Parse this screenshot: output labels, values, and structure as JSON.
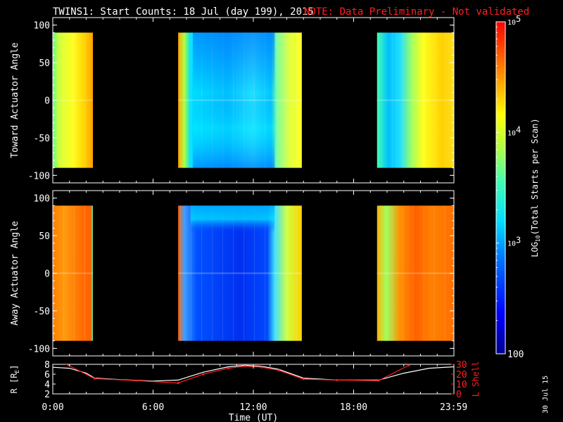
{
  "title": {
    "main": "TWINS1: Start Counts: 18 Jul (day 199), 2015",
    "note": "NOTE: Data Preliminary - Not validated"
  },
  "side_date": "30 Jul 15",
  "colors": {
    "background": "#000000",
    "axis": "#ffffff",
    "note": "#ff2020",
    "r_line": "#ffffff",
    "lshell_line": "#ff2020"
  },
  "chart_data": [
    {
      "type": "heatmap",
      "name": "toward",
      "ylabel": "Toward Actuator Angle",
      "ylim": [
        -110,
        110
      ],
      "yticks": [
        100,
        50,
        0,
        -50,
        -100
      ],
      "data_ylim": [
        -90,
        90
      ],
      "xlim": [
        0,
        24
      ],
      "time_blocks": [
        {
          "start": 0.0,
          "end": 2.4,
          "profile": "yellow",
          "log_value": 4.1
        },
        {
          "start": 7.5,
          "end": 14.9,
          "profile": "cyan-blue",
          "log_value": 3.2
        },
        {
          "start": 19.4,
          "end": 24.0,
          "profile": "yellow-cyan",
          "log_value": 3.8
        }
      ]
    },
    {
      "type": "heatmap",
      "name": "away",
      "ylabel": "Away Actuator Angle",
      "ylim": [
        -110,
        110
      ],
      "yticks": [
        100,
        50,
        0,
        -50,
        -100
      ],
      "data_ylim": [
        -90,
        90
      ],
      "xlim": [
        0,
        24
      ],
      "time_blocks": [
        {
          "start": 0.0,
          "end": 2.4,
          "profile": "orange",
          "log_value": 4.4
        },
        {
          "start": 7.5,
          "end": 14.9,
          "profile": "blue",
          "log_value": 2.7
        },
        {
          "start": 19.4,
          "end": 24.0,
          "profile": "orange-mixed",
          "log_value": 4.2
        }
      ]
    },
    {
      "type": "line",
      "name": "ephemeris",
      "xlabel": "Time (UT)",
      "xlim": [
        0,
        24
      ],
      "xticks": [
        "0:00",
        "6:00",
        "12:00",
        "18:00",
        "23:59"
      ],
      "left_axis": {
        "label": "R [R",
        "label_sub": "E",
        "label_end": "]",
        "ylim": [
          2,
          8
        ],
        "yticks": [
          2,
          4,
          6,
          8
        ]
      },
      "right_axis": {
        "label": "L Shell",
        "ylim": [
          0,
          30
        ],
        "yticks": [
          0,
          10,
          20,
          30
        ]
      },
      "series": [
        {
          "axis": "left",
          "x": [
            0,
            1,
            2,
            2.5,
            4,
            6,
            7.5,
            9,
            10.5,
            11.5,
            12.5,
            13.5,
            15,
            17,
            19.5,
            21,
            22.5,
            24
          ],
          "y": [
            7.4,
            7.2,
            6.2,
            5.2,
            4.9,
            4.6,
            4.8,
            6.4,
            7.5,
            7.8,
            7.6,
            7.0,
            5.2,
            4.8,
            4.8,
            6.2,
            7.2,
            7.5
          ]
        },
        {
          "axis": "right",
          "x": [
            0.7,
            2.5,
            5,
            7.5,
            9,
            10.5,
            11.5,
            12.5,
            13.5,
            15,
            17,
            19.5,
            21.3
          ],
          "y": [
            31,
            15.5,
            13.5,
            11,
            20,
            26,
            28,
            27,
            24,
            15,
            14,
            13.5,
            29
          ]
        }
      ]
    },
    {
      "type": "colorbar",
      "label": "LOG",
      "label_sub": "10",
      "label_end": "(Total Starts per Scan)",
      "log_range": [
        2,
        5
      ],
      "ticks": [
        {
          "log": 5,
          "base": "10",
          "exp": "5"
        },
        {
          "log": 4,
          "base": "10",
          "exp": "4"
        },
        {
          "log": 3,
          "base": "10",
          "exp": "3"
        },
        {
          "log": 2,
          "base": "100",
          "exp": ""
        }
      ]
    }
  ]
}
